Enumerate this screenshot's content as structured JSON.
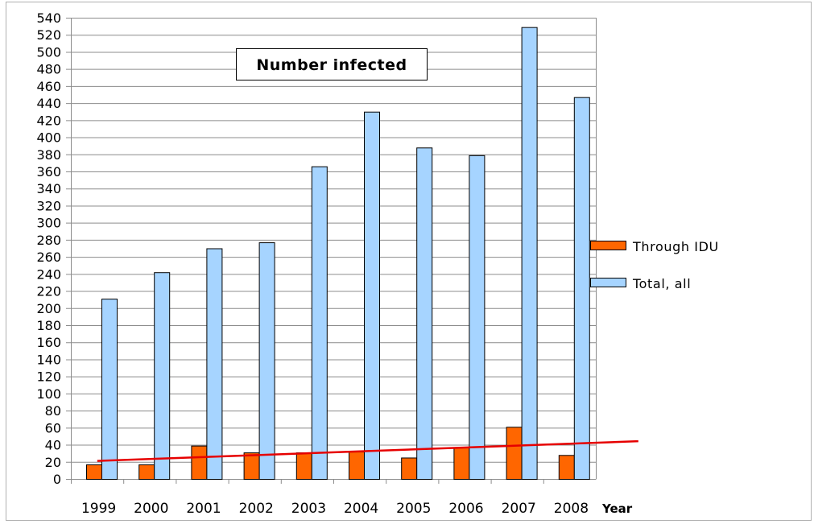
{
  "chart_data": {
    "type": "bar",
    "title": "Number infected",
    "xlabel": "Year",
    "ylabel": "",
    "categories": [
      "1999",
      "2000",
      "2001",
      "2002",
      "2003",
      "2004",
      "2005",
      "2006",
      "2007",
      "2008"
    ],
    "series": [
      {
        "name": "Through IDU",
        "color": "#ff6600",
        "values": [
          17,
          17,
          39,
          31,
          31,
          32,
          25,
          37,
          61,
          28
        ]
      },
      {
        "name": "Total, all",
        "color": "#a6d4ff",
        "values": [
          211,
          242,
          270,
          277,
          366,
          430,
          388,
          379,
          529,
          447
        ]
      }
    ],
    "trendline": {
      "series": "Through IDU",
      "color": "#e60000",
      "type": "linear"
    },
    "ylim": [
      0,
      540
    ],
    "ytick_step": 20,
    "grid": true,
    "legend_position": "right"
  }
}
